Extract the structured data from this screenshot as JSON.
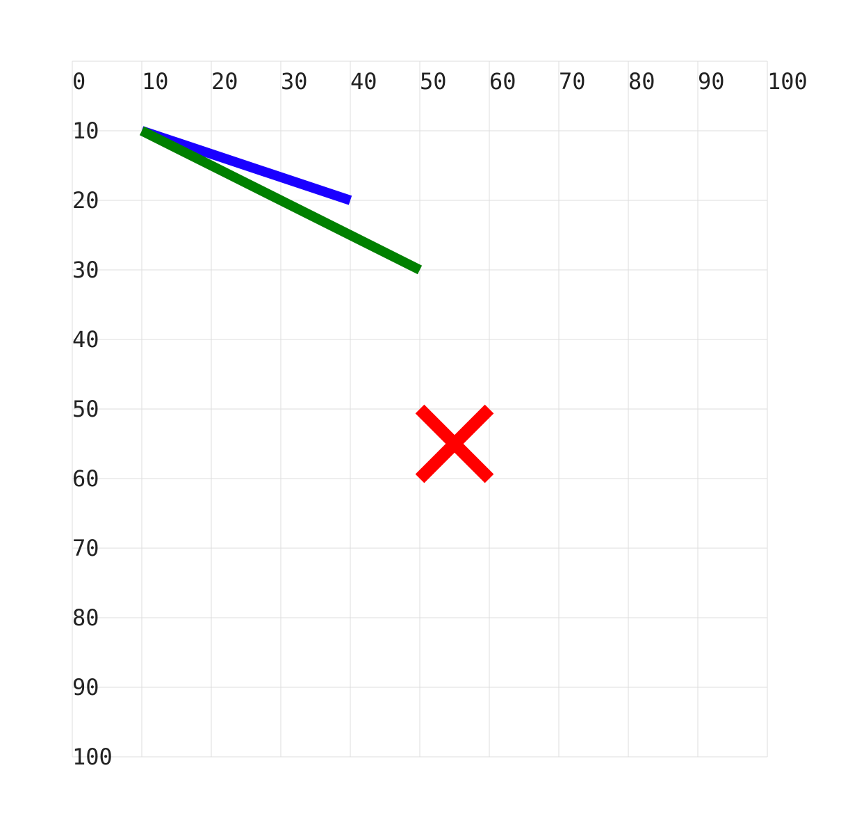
{
  "grid": {
    "x_range": [
      0,
      100
    ],
    "y_range": [
      0,
      100
    ],
    "step": 10,
    "x_ticks": [
      "0",
      "10",
      "20",
      "30",
      "40",
      "50",
      "60",
      "70",
      "80",
      "90",
      "100"
    ],
    "y_ticks": [
      "10",
      "20",
      "30",
      "40",
      "50",
      "60",
      "70",
      "80",
      "90",
      "100"
    ],
    "grid_color": "#dddddd"
  },
  "segments": [
    {
      "name": "blue-line",
      "color": "#1a00ff",
      "from": [
        10,
        10
      ],
      "to": [
        40,
        20
      ]
    },
    {
      "name": "green-line",
      "color": "#008000",
      "from": [
        10,
        10
      ],
      "to": [
        50,
        30
      ]
    }
  ],
  "marker": {
    "name": "red-x-marker",
    "color": "#ff0000",
    "center": [
      55,
      55
    ],
    "half_span": 5
  }
}
